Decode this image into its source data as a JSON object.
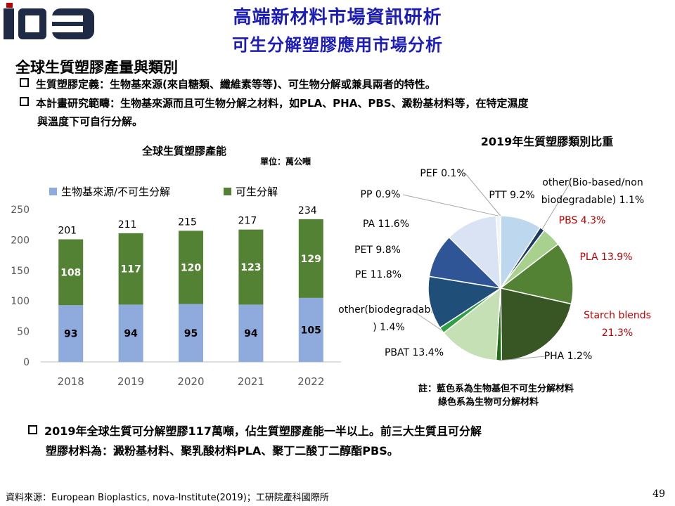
{
  "header": {
    "logo_text": "ID3",
    "title": "高端新材料市場資訊研析",
    "subtitle": "可生分解塑膠應用市場分析"
  },
  "section_heading": "全球生質塑膠產量與類別",
  "bullets": [
    {
      "lines": [
        "生質塑膠定義：生物基來源(來自糖類、纖維素等等)、可生物分解或兼具兩者的特性。"
      ]
    },
    {
      "lines": [
        "本計畫研究範疇：生物基來源而且可生物分解之材料，如PLA、PHA、PBS、澱粉基材料等，在特定濕度",
        "與溫度下可自行分解。"
      ]
    }
  ],
  "bottom_bullet": {
    "lines": [
      "2019年全球生質可分解塑膠117萬噸，佔生質塑膠產能一半以上。前三大生質且可分解",
      "塑膠材料為：澱粉基材料、聚乳酸材料PLA、聚丁二酸丁二醇酯PBS。"
    ]
  },
  "note": {
    "lines": [
      "註：藍色系為生物基但不可生分解材料",
      "綠色系為生物可分解材料"
    ]
  },
  "source": "資料來源：European Bioplastics, nova-Institute(2019)；工研院產科國際所",
  "page_number": "49",
  "chart_data": [
    {
      "type": "bar",
      "stacked": true,
      "title": "全球生質塑膠產能",
      "unit": "單位：萬公噸",
      "categories": [
        "2018",
        "2019",
        "2020",
        "2021",
        "2022"
      ],
      "series": [
        {
          "name": "生物基來源/不可生分解",
          "color": "#8faadc",
          "values": [
            93,
            94,
            95,
            94,
            105
          ]
        },
        {
          "name": "可生分解",
          "color": "#548235",
          "values": [
            108,
            117,
            120,
            123,
            129
          ]
        }
      ],
      "totals": [
        201,
        211,
        215,
        217,
        234
      ],
      "yticks": [
        0,
        50,
        100,
        150,
        200,
        250
      ],
      "ylim": [
        0,
        250
      ],
      "legend": "top"
    },
    {
      "type": "pie",
      "title": "2019年生質塑膠類別比重",
      "slices": [
        {
          "name": "PTT",
          "value": 9.2,
          "color": "#bdd7ee",
          "label_lines": [
            "PTT 9.2%"
          ],
          "label_color": "#000000"
        },
        {
          "name": "other(Bio-based/non biodegradable)",
          "value": 1.1,
          "color": "#203864",
          "label_lines": [
            "other(Bio-based/non",
            "biodegradable) 1.1%"
          ],
          "label_color": "#000000"
        },
        {
          "name": "PBS",
          "value": 4.3,
          "color": "#a9d18e",
          "label_lines": [
            "PBS 4.3%"
          ],
          "label_color": "#c00000"
        },
        {
          "name": "PLA",
          "value": 13.9,
          "color": "#548235",
          "label_lines": [
            "PLA 13.9%"
          ],
          "label_color": "#c00000"
        },
        {
          "name": "Starch blends",
          "value": 21.3,
          "color": "#375623",
          "label_lines": [
            "Starch blends",
            "21.3%"
          ],
          "label_color": "#c00000"
        },
        {
          "name": "PHA",
          "value": 1.2,
          "color": "#1f6d16",
          "label_lines": [
            "PHA 1.2%"
          ],
          "label_color": "#000000"
        },
        {
          "name": "PBAT",
          "value": 13.4,
          "color": "#c5e0b4",
          "label_lines": [
            "PBAT 13.4%"
          ],
          "label_color": "#000000"
        },
        {
          "name": "other(biodegradable)",
          "value": 1.4,
          "color": "#2ea043",
          "label_lines": [
            "other(biodegradable",
            ") 1.4%"
          ],
          "label_color": "#000000"
        },
        {
          "name": "PE",
          "value": 11.8,
          "color": "#1f4e79",
          "label_lines": [
            "PE 11.8%"
          ],
          "label_color": "#000000"
        },
        {
          "name": "PET",
          "value": 9.8,
          "color": "#2f5597",
          "label_lines": [
            "PET 9.8%"
          ],
          "label_color": "#000000"
        },
        {
          "name": "PA",
          "value": 11.6,
          "color": "#dae3f3",
          "label_lines": [
            "PA 11.6%"
          ],
          "label_color": "#000000"
        },
        {
          "name": "PP",
          "value": 0.9,
          "color": "#eef3fa",
          "label_lines": [
            "PP 0.9%"
          ],
          "label_color": "#000000"
        },
        {
          "name": "PEF",
          "value": 0.1,
          "color": "#f4f7fc",
          "label_lines": [
            "PEF 0.1%"
          ],
          "label_color": "#000000"
        }
      ]
    }
  ]
}
